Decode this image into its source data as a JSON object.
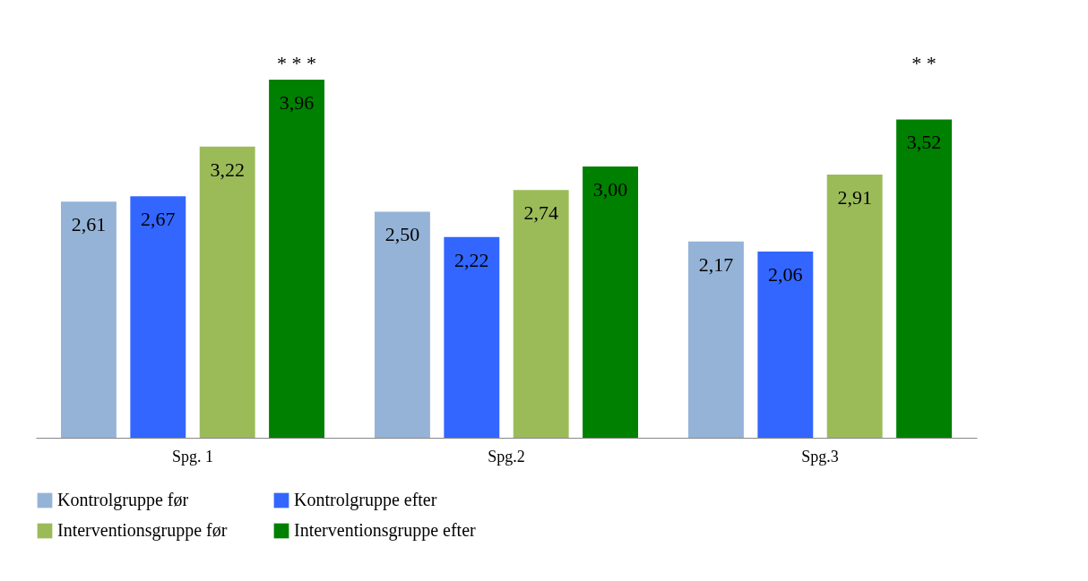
{
  "chart_data": {
    "type": "bar",
    "categories": [
      "Spg. 1",
      "Spg.2",
      "Spg.3"
    ],
    "series": [
      {
        "name": "Kontrolgruppe før",
        "color": "#95b3d7",
        "values": [
          2.61,
          2.5,
          2.17
        ],
        "value_labels": [
          "2,61",
          "2,50",
          "2,17"
        ]
      },
      {
        "name": "Kontrolgruppe efter",
        "color": "#3366ff",
        "values": [
          2.67,
          2.22,
          2.06
        ],
        "value_labels": [
          "2,67",
          "2,22",
          "2,06"
        ]
      },
      {
        "name": "Interventionsgruppe før",
        "color": "#9bbb59",
        "values": [
          3.22,
          2.74,
          2.91
        ],
        "value_labels": [
          "3,22",
          "2,74",
          "2,91"
        ]
      },
      {
        "name": "Interventionsgruppe efter",
        "color": "#008000",
        "values": [
          3.96,
          3.0,
          3.52
        ],
        "value_labels": [
          "3,96",
          "3,00",
          "3,52"
        ]
      }
    ],
    "tick_labels": "x",
    "grid": false,
    "legend": "bottom",
    "annotations": [
      "* * *",
      "* *"
    ]
  }
}
